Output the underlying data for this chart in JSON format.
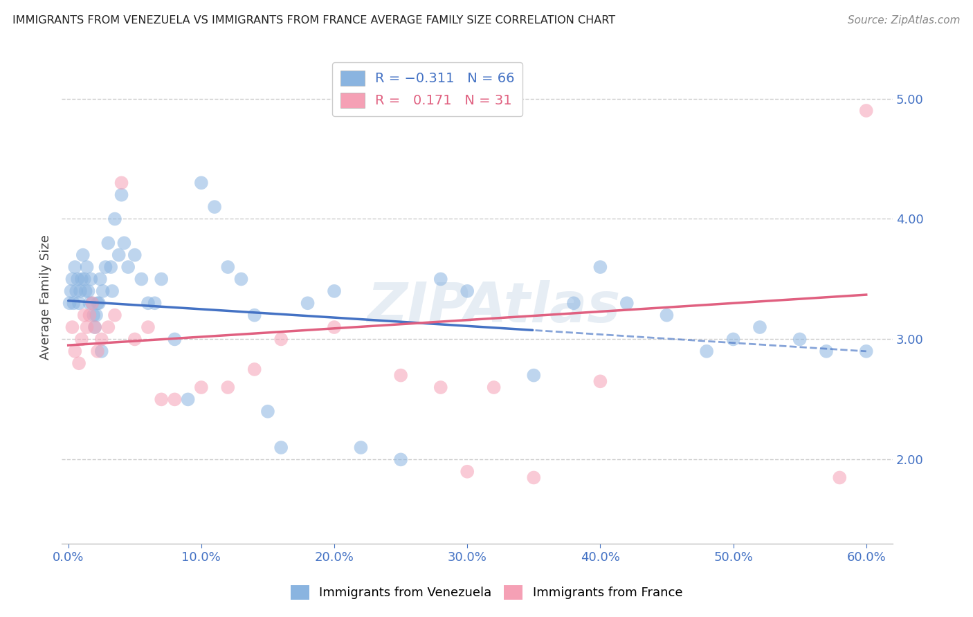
{
  "title": "IMMIGRANTS FROM VENEZUELA VS IMMIGRANTS FROM FRANCE AVERAGE FAMILY SIZE CORRELATION CHART",
  "source": "Source: ZipAtlas.com",
  "ylabel": "Average Family Size",
  "xlabel_ticks": [
    "0.0%",
    "10.0%",
    "20.0%",
    "30.0%",
    "40.0%",
    "50.0%",
    "60.0%"
  ],
  "xlabel_vals": [
    0,
    10,
    20,
    30,
    40,
    50,
    60
  ],
  "yticks": [
    2.0,
    3.0,
    4.0,
    5.0
  ],
  "ylim": [
    1.3,
    5.4
  ],
  "xlim": [
    -0.5,
    62
  ],
  "bottom_legend": [
    "Immigrants from Venezuela",
    "Immigrants from France"
  ],
  "venezuela_color": "#8ab4e0",
  "france_color": "#f5a0b5",
  "background_color": "#ffffff",
  "grid_color": "#cccccc",
  "title_color": "#222222",
  "axis_color": "#4472c4",
  "ven_line_color": "#4472c4",
  "fra_line_color": "#e06080",
  "venezuela_x": [
    0.1,
    0.2,
    0.3,
    0.4,
    0.5,
    0.6,
    0.7,
    0.8,
    0.9,
    1.0,
    1.1,
    1.2,
    1.3,
    1.4,
    1.5,
    1.6,
    1.7,
    1.8,
    1.9,
    2.0,
    2.2,
    2.4,
    2.6,
    2.8,
    3.0,
    3.2,
    3.5,
    3.8,
    4.0,
    4.5,
    5.0,
    5.5,
    6.0,
    7.0,
    8.0,
    9.0,
    10.0,
    11.0,
    12.0,
    13.0,
    14.0,
    15.0,
    16.0,
    18.0,
    20.0,
    22.0,
    25.0,
    28.0,
    30.0,
    35.0,
    38.0,
    40.0,
    42.0,
    45.0,
    48.0,
    50.0,
    52.0,
    55.0,
    57.0,
    60.0,
    2.1,
    2.3,
    2.5,
    3.3,
    4.2,
    6.5
  ],
  "venezuela_y": [
    3.3,
    3.4,
    3.5,
    3.3,
    3.6,
    3.4,
    3.5,
    3.3,
    3.4,
    3.5,
    3.7,
    3.5,
    3.4,
    3.6,
    3.4,
    3.3,
    3.5,
    3.3,
    3.2,
    3.1,
    3.3,
    3.5,
    3.4,
    3.6,
    3.8,
    3.6,
    4.0,
    3.7,
    4.2,
    3.6,
    3.7,
    3.5,
    3.3,
    3.5,
    3.0,
    2.5,
    4.3,
    4.1,
    3.6,
    3.5,
    3.2,
    2.4,
    2.1,
    3.3,
    3.4,
    2.1,
    2.0,
    3.5,
    3.4,
    2.7,
    3.3,
    3.6,
    3.3,
    3.2,
    2.9,
    3.0,
    3.1,
    3.0,
    2.9,
    2.9,
    3.2,
    3.3,
    2.9,
    3.4,
    3.8,
    3.3
  ],
  "france_x": [
    0.3,
    0.5,
    0.8,
    1.0,
    1.2,
    1.4,
    1.6,
    1.8,
    2.0,
    2.2,
    2.5,
    3.0,
    3.5,
    4.0,
    5.0,
    6.0,
    7.0,
    8.0,
    10.0,
    12.0,
    14.0,
    16.0,
    20.0,
    25.0,
    28.0,
    30.0,
    32.0,
    35.0,
    40.0,
    58.0,
    60.0
  ],
  "france_y": [
    3.1,
    2.9,
    2.8,
    3.0,
    3.2,
    3.1,
    3.2,
    3.3,
    3.1,
    2.9,
    3.0,
    3.1,
    3.2,
    4.3,
    3.0,
    3.1,
    2.5,
    2.5,
    2.6,
    2.6,
    2.75,
    3.0,
    3.1,
    2.7,
    2.6,
    1.9,
    2.6,
    1.85,
    2.65,
    1.85,
    4.9
  ],
  "ven_solid_end": 35,
  "ven_line_intercept": 3.32,
  "ven_line_slope": -0.007,
  "fra_line_intercept": 2.95,
  "fra_line_slope": 0.007
}
